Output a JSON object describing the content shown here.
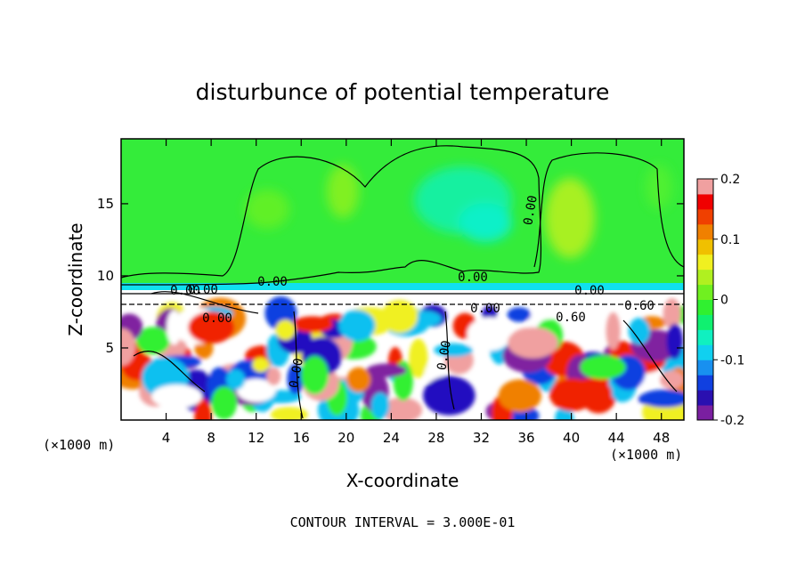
{
  "chart_data": {
    "type": "heatmap",
    "title": "disturbunce of potential temperature",
    "xlabel": "X-coordinate",
    "ylabel": "Z-coordinate",
    "x_unit_left": "(×1000 m)",
    "x_unit_right": "(×1000 m)",
    "x_ticks": [
      "4",
      "8",
      "12",
      "16",
      "20",
      "24",
      "28",
      "32",
      "36",
      "40",
      "44",
      "48"
    ],
    "y_ticks": [
      "5",
      "10",
      "15"
    ],
    "xlim": [
      0,
      50
    ],
    "ylim": [
      0,
      19.5
    ],
    "colorbar": {
      "tick_labels": [
        "0.2",
        "0.1",
        "0",
        "-0.1",
        "-0.2"
      ],
      "range": [
        -0.2,
        0.2
      ],
      "colors": [
        "#7a1fa0",
        "#2a10b0",
        "#1040e0",
        "#1890f0",
        "#10d0f0",
        "#10f0c0",
        "#10f070",
        "#30f030",
        "#70f020",
        "#b0f020",
        "#f0f020",
        "#f0c000",
        "#f08000",
        "#f04000",
        "#f00000",
        "#f0a0a0"
      ]
    },
    "contour_labels": [
      "0.00",
      "0.00",
      "0.00",
      "0.00",
      "0.00",
      "0.00",
      "0.60",
      "0.60",
      "0.00",
      "0.00",
      "0.00",
      "0.00"
    ],
    "footer": "CONTOUR INTERVAL = 3.000E-01"
  }
}
